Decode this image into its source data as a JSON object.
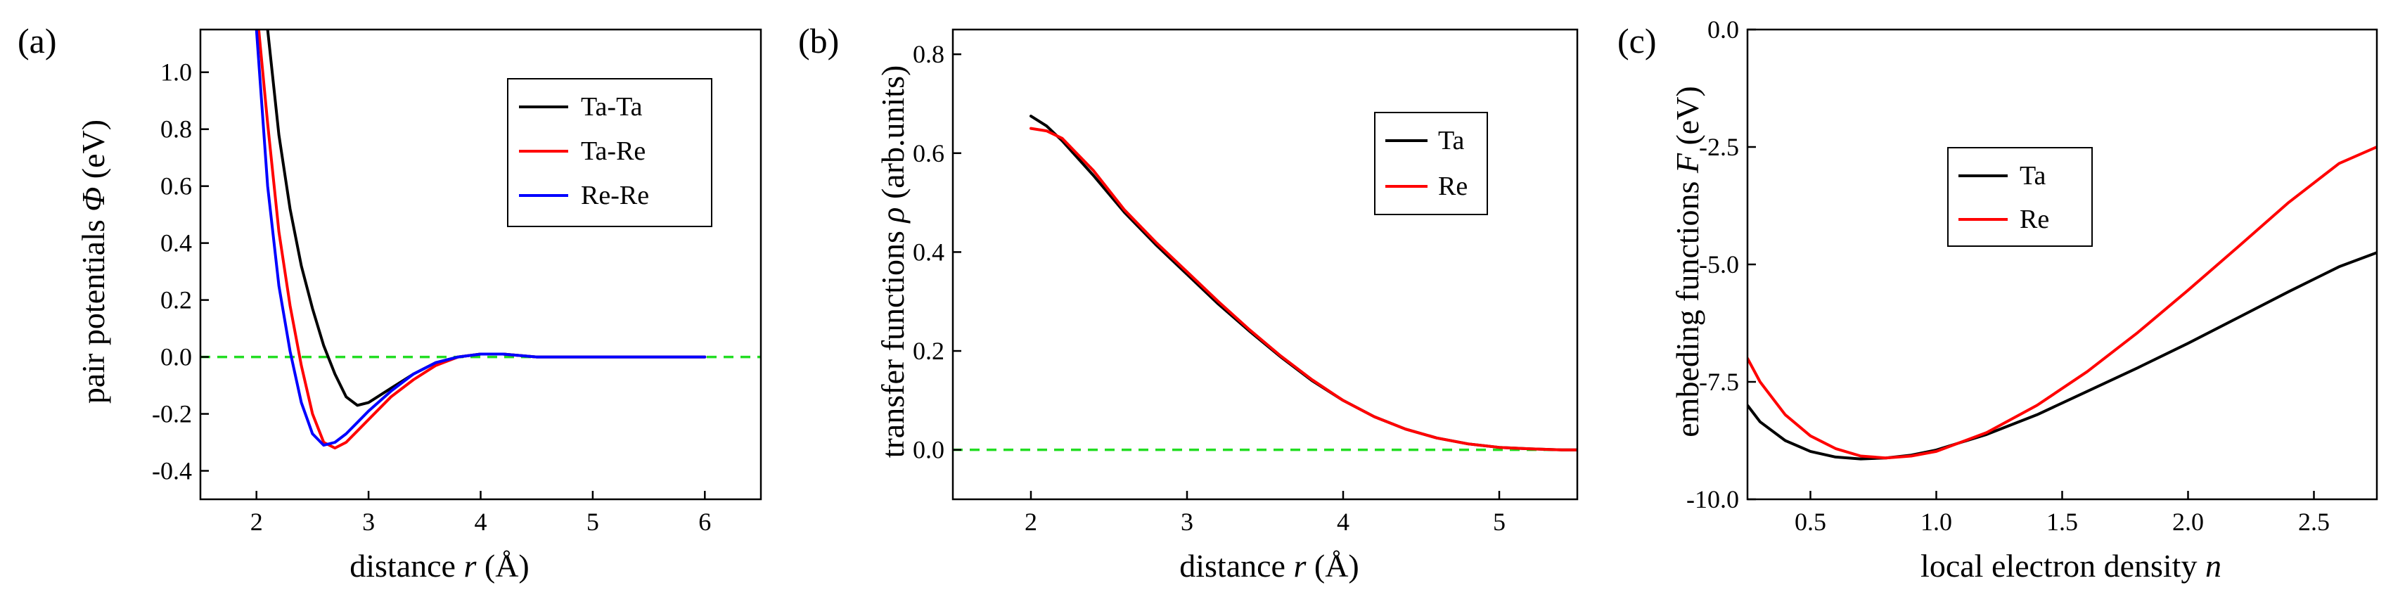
{
  "chart_data": [
    {
      "type": "line",
      "panel_label": "(a)",
      "xlabel_prefix": "distance ",
      "xlabel_var": "r",
      "xlabel_suffix": " (Å)",
      "ylabel_prefix": "pair potentials ",
      "ylabel_var": "Φ",
      "ylabel_suffix": " (eV)",
      "xlim": [
        1.5,
        6.5
      ],
      "ylim": [
        -0.5,
        1.15
      ],
      "xticks": [
        2,
        3,
        4,
        5,
        6
      ],
      "xtick_labels": [
        "2",
        "3",
        "4",
        "5",
        "6"
      ],
      "yticks": [
        -0.4,
        -0.2,
        0.0,
        0.2,
        0.4,
        0.6,
        0.8,
        1.0
      ],
      "ytick_labels": [
        "-0.4",
        "-0.2",
        "0.0",
        "0.2",
        "0.4",
        "0.6",
        "0.8",
        "1.0"
      ],
      "reference_line_y": 0,
      "legend_position": "top-right",
      "series": [
        {
          "name": "Ta-Ta",
          "color": "#000000",
          "x": [
            2.1,
            2.2,
            2.3,
            2.4,
            2.5,
            2.6,
            2.7,
            2.8,
            2.9,
            3.0,
            3.2,
            3.4,
            3.6,
            3.8,
            4.0,
            4.2,
            4.5,
            5.0,
            5.5,
            6.0
          ],
          "y": [
            1.15,
            0.78,
            0.52,
            0.32,
            0.17,
            0.04,
            -0.06,
            -0.14,
            -0.17,
            -0.16,
            -0.11,
            -0.06,
            -0.02,
            0.0,
            0.01,
            0.01,
            0.0,
            0.0,
            0.0,
            0.0
          ]
        },
        {
          "name": "Ta-Re",
          "color": "#ff0000",
          "x": [
            2.02,
            2.1,
            2.2,
            2.3,
            2.4,
            2.5,
            2.6,
            2.7,
            2.8,
            2.9,
            3.0,
            3.2,
            3.4,
            3.6,
            3.8,
            4.0,
            4.2,
            4.5,
            5.0,
            5.5,
            6.0
          ],
          "y": [
            1.15,
            0.82,
            0.44,
            0.18,
            -0.03,
            -0.2,
            -0.3,
            -0.32,
            -0.3,
            -0.26,
            -0.22,
            -0.14,
            -0.08,
            -0.03,
            0.0,
            0.01,
            0.01,
            0.0,
            0.0,
            0.0,
            0.0
          ]
        },
        {
          "name": "Re-Re",
          "color": "#0000ff",
          "x": [
            2.0,
            2.1,
            2.2,
            2.3,
            2.4,
            2.5,
            2.6,
            2.7,
            2.8,
            2.9,
            3.0,
            3.2,
            3.4,
            3.6,
            3.8,
            4.0,
            4.2,
            4.5,
            5.0,
            5.5,
            6.0
          ],
          "y": [
            1.15,
            0.6,
            0.25,
            0.02,
            -0.16,
            -0.27,
            -0.31,
            -0.3,
            -0.27,
            -0.23,
            -0.19,
            -0.12,
            -0.06,
            -0.02,
            0.0,
            0.01,
            0.01,
            0.0,
            0.0,
            0.0,
            0.0
          ]
        }
      ]
    },
    {
      "type": "line",
      "panel_label": "(b)",
      "xlabel_prefix": "distance ",
      "xlabel_var": "r",
      "xlabel_suffix": " (Å)",
      "ylabel_prefix": "transfer functions ",
      "ylabel_var": "ρ",
      "ylabel_suffix": " (arb.units)",
      "xlim": [
        1.5,
        5.5
      ],
      "ylim": [
        -0.1,
        0.85
      ],
      "xticks": [
        2,
        3,
        4,
        5
      ],
      "xtick_labels": [
        "2",
        "3",
        "4",
        "5"
      ],
      "yticks": [
        0.0,
        0.2,
        0.4,
        0.6,
        0.8
      ],
      "ytick_labels": [
        "0.0",
        "0.2",
        "0.4",
        "0.6",
        "0.8"
      ],
      "reference_line_y": 0,
      "legend_position": "top-right",
      "series": [
        {
          "name": "Ta",
          "color": "#000000",
          "x": [
            2.0,
            2.1,
            2.2,
            2.4,
            2.6,
            2.8,
            3.0,
            3.2,
            3.4,
            3.6,
            3.8,
            4.0,
            4.2,
            4.4,
            4.6,
            4.8,
            5.0,
            5.2,
            5.4,
            5.5
          ],
          "y": [
            0.675,
            0.655,
            0.625,
            0.555,
            0.48,
            0.415,
            0.355,
            0.295,
            0.24,
            0.188,
            0.14,
            0.1,
            0.067,
            0.042,
            0.024,
            0.012,
            0.005,
            0.002,
            0.0,
            0.0
          ]
        },
        {
          "name": "Re",
          "color": "#ff0000",
          "x": [
            2.0,
            2.1,
            2.2,
            2.4,
            2.6,
            2.8,
            3.0,
            3.2,
            3.4,
            3.6,
            3.8,
            4.0,
            4.2,
            4.4,
            4.6,
            4.8,
            5.0,
            5.2,
            5.4,
            5.5
          ],
          "y": [
            0.65,
            0.645,
            0.63,
            0.565,
            0.485,
            0.42,
            0.36,
            0.3,
            0.243,
            0.19,
            0.142,
            0.1,
            0.067,
            0.042,
            0.024,
            0.012,
            0.005,
            0.002,
            0.0,
            0.0
          ]
        }
      ]
    },
    {
      "type": "line",
      "panel_label": "(c)",
      "xlabel_prefix": "local electron density ",
      "xlabel_var": "n",
      "xlabel_suffix": "",
      "ylabel_prefix": "embeding functions ",
      "ylabel_var": "F",
      "ylabel_suffix": " (eV)",
      "xlim": [
        0.25,
        2.75
      ],
      "ylim": [
        -10.0,
        0.0
      ],
      "xticks": [
        0.5,
        1.0,
        1.5,
        2.0,
        2.5
      ],
      "xtick_labels": [
        "0.5",
        "1.0",
        "1.5",
        "2.0",
        "2.5"
      ],
      "yticks": [
        -10.0,
        -7.5,
        -5.0,
        -2.5,
        0.0
      ],
      "ytick_labels": [
        "-10.0",
        "-7.5",
        "-5.0",
        "-2.5",
        "0.0"
      ],
      "legend_position": "upper-left",
      "series": [
        {
          "name": "Ta",
          "color": "#000000",
          "x": [
            0.25,
            0.3,
            0.4,
            0.5,
            0.6,
            0.7,
            0.8,
            0.9,
            1.0,
            1.2,
            1.4,
            1.6,
            1.8,
            2.0,
            2.2,
            2.4,
            2.6,
            2.75
          ],
          "y": [
            -8.0,
            -8.35,
            -8.75,
            -8.98,
            -9.1,
            -9.14,
            -9.12,
            -9.06,
            -8.95,
            -8.62,
            -8.2,
            -7.7,
            -7.2,
            -6.68,
            -6.13,
            -5.58,
            -5.05,
            -4.75
          ]
        },
        {
          "name": "Re",
          "color": "#ff0000",
          "x": [
            0.25,
            0.3,
            0.4,
            0.5,
            0.6,
            0.7,
            0.8,
            0.9,
            1.0,
            1.2,
            1.4,
            1.6,
            1.8,
            2.0,
            2.2,
            2.4,
            2.6,
            2.75
          ],
          "y": [
            -7.0,
            -7.5,
            -8.2,
            -8.65,
            -8.92,
            -9.08,
            -9.12,
            -9.08,
            -8.98,
            -8.58,
            -8.0,
            -7.28,
            -6.45,
            -5.55,
            -4.62,
            -3.68,
            -2.85,
            -2.5
          ]
        }
      ]
    }
  ]
}
